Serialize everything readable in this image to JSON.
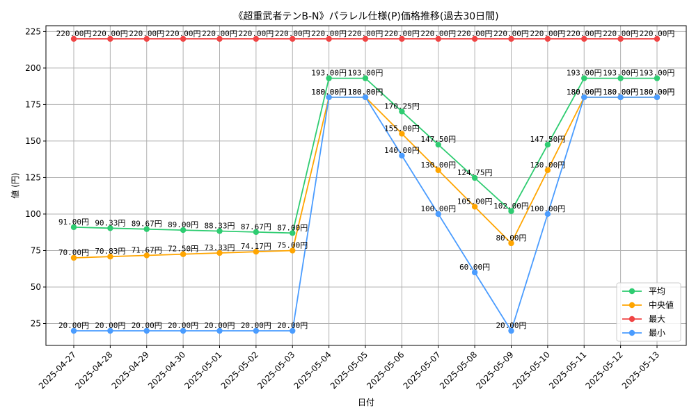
{
  "chart_data": {
    "type": "line",
    "title": "《超重武者テンB-N》パラレル仕様(P)価格推移(過去30日間)",
    "xlabel": "日付",
    "ylabel": "値 (円)",
    "ylim": [
      10,
      229
    ],
    "yticks": [
      25,
      50,
      75,
      100,
      125,
      150,
      175,
      200,
      225
    ],
    "grid": true,
    "legend_position": "bottom-right",
    "value_suffix": "円",
    "categories": [
      "2025-04-27",
      "2025-04-28",
      "2025-04-29",
      "2025-04-30",
      "2025-05-01",
      "2025-05-02",
      "2025-05-03",
      "2025-05-04",
      "2025-05-05",
      "2025-05-06",
      "2025-05-07",
      "2025-05-08",
      "2025-05-09",
      "2025-05-10",
      "2025-05-11",
      "2025-05-12",
      "2025-05-13"
    ],
    "series": [
      {
        "name": "平均",
        "color": "#2ecc71",
        "values": [
          91.0,
          90.33,
          89.67,
          89.0,
          88.33,
          87.67,
          87.0,
          193.0,
          193.0,
          170.25,
          147.5,
          124.75,
          102.0,
          147.5,
          193.0,
          193.0,
          193.0
        ]
      },
      {
        "name": "中央値",
        "color": "#ffa500",
        "values": [
          70.0,
          70.83,
          71.67,
          72.5,
          73.33,
          74.17,
          75.0,
          180.0,
          180.0,
          155.0,
          130.0,
          105.0,
          80.0,
          130.0,
          180.0,
          180.0,
          180.0
        ]
      },
      {
        "name": "最大",
        "color": "#f04444",
        "values": [
          220.0,
          220.0,
          220.0,
          220.0,
          220.0,
          220.0,
          220.0,
          220.0,
          220.0,
          220.0,
          220.0,
          220.0,
          220.0,
          220.0,
          220.0,
          220.0,
          220.0
        ]
      },
      {
        "name": "最小",
        "color": "#4a9cff",
        "values": [
          20.0,
          20.0,
          20.0,
          20.0,
          20.0,
          20.0,
          20.0,
          180.0,
          180.0,
          140.0,
          100.0,
          60.0,
          20.0,
          100.0,
          180.0,
          180.0,
          180.0
        ]
      }
    ]
  }
}
